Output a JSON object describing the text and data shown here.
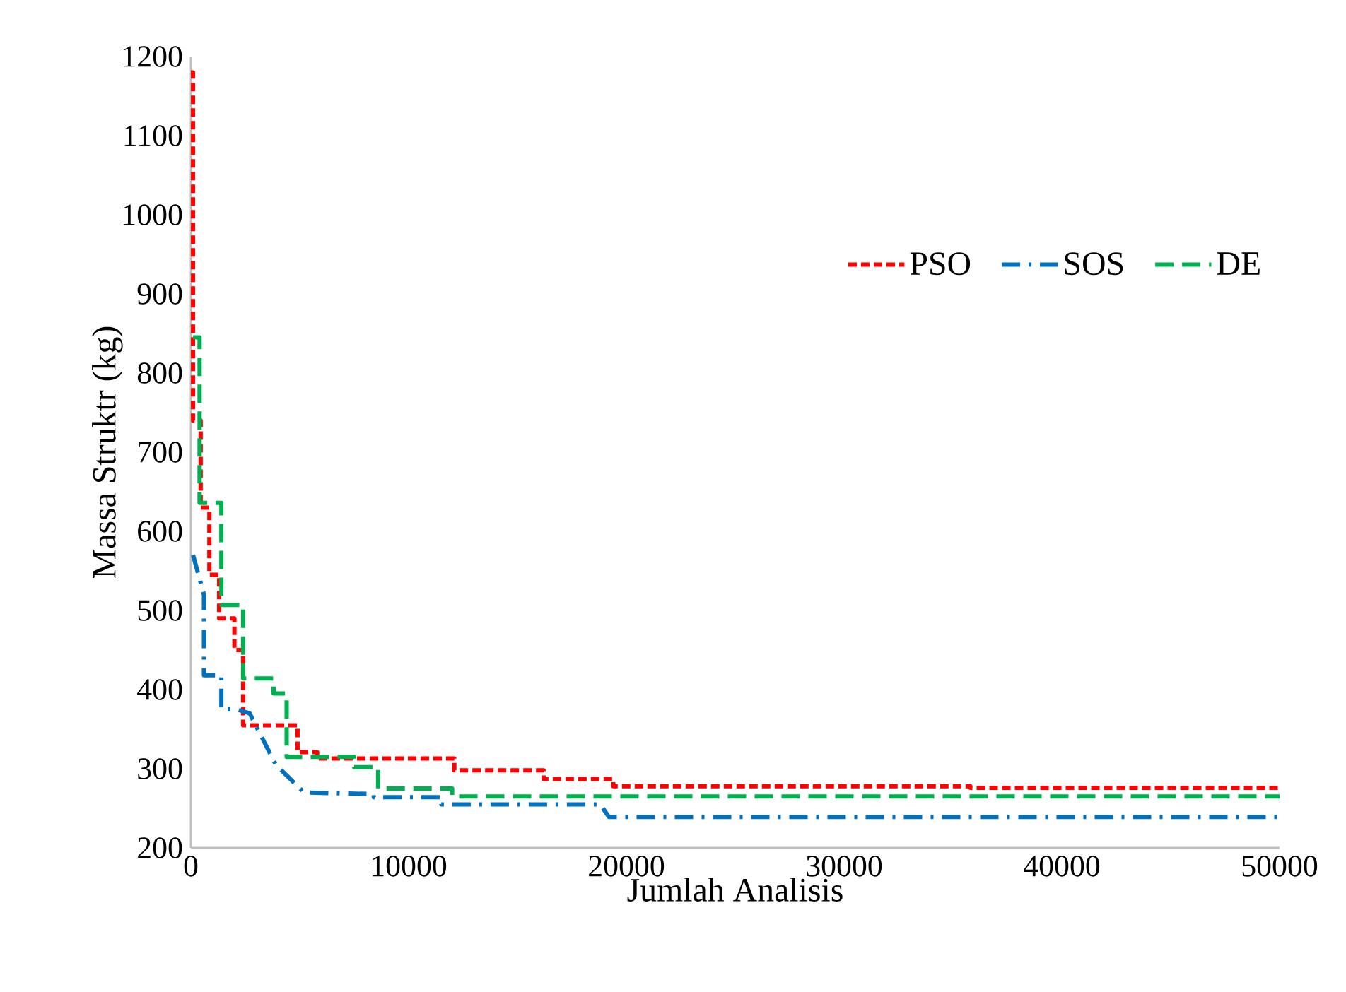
{
  "chart_data": {
    "type": "line",
    "xlabel": "Jumlah Analisis",
    "ylabel": "Massa Struktr (kg)",
    "xlim": [
      0,
      50000
    ],
    "ylim": [
      200,
      1200
    ],
    "xticks": [
      0,
      10000,
      20000,
      30000,
      40000,
      50000
    ],
    "yticks": [
      200,
      300,
      400,
      500,
      600,
      700,
      800,
      900,
      1000,
      1100,
      1200
    ],
    "grid": false,
    "legend": "top right",
    "marker": "none",
    "series": [
      {
        "name": "PSO",
        "color": "#ff0000",
        "line_style": "dotted",
        "x": [
          0,
          100,
          100,
          450,
          450,
          850,
          850,
          1300,
          1300,
          2000,
          2000,
          2400,
          2400,
          4900,
          4900,
          5800,
          5800,
          12100,
          12100,
          16200,
          16200,
          19400,
          19400,
          35800,
          35800,
          50000
        ],
        "values": [
          1180,
          1180,
          740,
          740,
          630,
          630,
          545,
          545,
          490,
          490,
          450,
          450,
          355,
          355,
          321,
          321,
          313,
          313,
          298,
          298,
          287,
          287,
          278,
          278,
          276,
          276
        ]
      },
      {
        "name": "SOS",
        "color": "#0070c0",
        "line_style": "dashdot",
        "x": [
          100,
          600,
          600,
          1400,
          1400,
          2100,
          2700,
          3900,
          5200,
          8400,
          8400,
          11500,
          11500,
          18800,
          19200,
          50000
        ],
        "values": [
          570,
          520,
          418,
          418,
          375,
          375,
          370,
          305,
          270,
          268,
          264,
          264,
          255,
          255,
          239,
          239
        ]
      },
      {
        "name": "DE",
        "color": "#00b050",
        "line_style": "dashed",
        "x": [
          100,
          400,
          400,
          1400,
          1400,
          2400,
          2400,
          3800,
          3800,
          4400,
          4400,
          7500,
          7500,
          8600,
          8600,
          12000,
          12000,
          50000
        ],
        "values": [
          845,
          845,
          636,
          636,
          507,
          507,
          414,
          414,
          395,
          395,
          315,
          315,
          302,
          302,
          275,
          275,
          265,
          265
        ]
      }
    ]
  }
}
